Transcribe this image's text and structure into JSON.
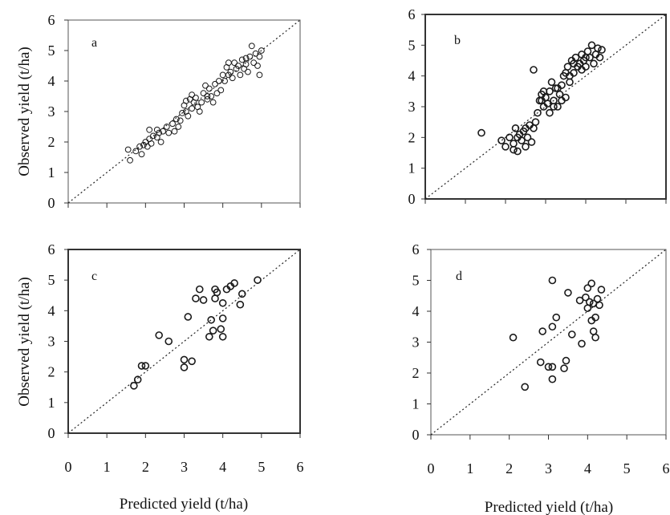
{
  "figure": {
    "ylabel": "Observed yield (t/ha)",
    "xlabel": "Predicted yield (t/ha)",
    "x_ticks": [
      "0",
      "1",
      "2",
      "3",
      "4",
      "5",
      "6"
    ],
    "y_ticks": [
      "0",
      "1",
      "2",
      "3",
      "4",
      "5",
      "6"
    ]
  },
  "chart_data": [
    {
      "type": "scatter",
      "panel": "a",
      "xlim": [
        0,
        6
      ],
      "ylim": [
        0,
        6
      ],
      "reference_line": "1:1 dotted",
      "grid": false,
      "points": [
        [
          1.55,
          1.75
        ],
        [
          1.6,
          1.4
        ],
        [
          1.75,
          1.7
        ],
        [
          1.85,
          1.85
        ],
        [
          1.9,
          1.6
        ],
        [
          1.95,
          1.9
        ],
        [
          2.0,
          2.0
        ],
        [
          2.05,
          1.85
        ],
        [
          2.1,
          2.1
        ],
        [
          2.1,
          2.4
        ],
        [
          2.15,
          1.95
        ],
        [
          2.2,
          2.2
        ],
        [
          2.3,
          2.15
        ],
        [
          2.35,
          2.3
        ],
        [
          2.4,
          2.0
        ],
        [
          2.45,
          2.35
        ],
        [
          2.55,
          2.5
        ],
        [
          2.6,
          2.3
        ],
        [
          2.7,
          2.6
        ],
        [
          2.75,
          2.35
        ],
        [
          2.85,
          2.5
        ],
        [
          2.9,
          2.7
        ],
        [
          2.95,
          2.95
        ],
        [
          3.0,
          3.2
        ],
        [
          3.05,
          3.0
        ],
        [
          3.05,
          3.35
        ],
        [
          3.1,
          2.85
        ],
        [
          3.15,
          3.4
        ],
        [
          3.2,
          3.1
        ],
        [
          3.25,
          3.3
        ],
        [
          3.3,
          3.45
        ],
        [
          3.35,
          3.15
        ],
        [
          3.4,
          3.0
        ],
        [
          3.45,
          3.3
        ],
        [
          3.5,
          3.6
        ],
        [
          3.55,
          3.85
        ],
        [
          3.6,
          3.4
        ],
        [
          3.65,
          3.75
        ],
        [
          3.7,
          3.5
        ],
        [
          3.75,
          3.3
        ],
        [
          3.8,
          3.9
        ],
        [
          3.85,
          3.6
        ],
        [
          3.9,
          4.0
        ],
        [
          3.95,
          3.7
        ],
        [
          4.0,
          4.2
        ],
        [
          4.05,
          4.0
        ],
        [
          4.1,
          4.45
        ],
        [
          4.15,
          4.2
        ],
        [
          4.2,
          4.3
        ],
        [
          4.25,
          4.1
        ],
        [
          4.3,
          4.6
        ],
        [
          4.35,
          4.4
        ],
        [
          4.4,
          4.5
        ],
        [
          4.45,
          4.2
        ],
        [
          4.5,
          4.7
        ],
        [
          4.55,
          4.4
        ],
        [
          4.6,
          4.55
        ],
        [
          4.65,
          4.3
        ],
        [
          4.7,
          4.8
        ],
        [
          4.75,
          5.15
        ],
        [
          4.8,
          4.6
        ],
        [
          4.85,
          4.9
        ],
        [
          4.9,
          4.5
        ],
        [
          4.95,
          4.2
        ],
        [
          4.95,
          4.8
        ],
        [
          5.0,
          5.0
        ],
        [
          3.6,
          3.5
        ],
        [
          3.2,
          3.55
        ],
        [
          2.8,
          2.75
        ],
        [
          2.3,
          2.4
        ],
        [
          4.15,
          4.6
        ],
        [
          4.6,
          4.75
        ]
      ]
    },
    {
      "type": "scatter",
      "panel": "b",
      "xlim": [
        0,
        6
      ],
      "ylim": [
        0,
        6
      ],
      "reference_line": "1:1 dotted",
      "grid": false,
      "points": [
        [
          1.4,
          2.15
        ],
        [
          1.9,
          1.9
        ],
        [
          2.0,
          1.7
        ],
        [
          2.1,
          2.0
        ],
        [
          2.2,
          1.8
        ],
        [
          2.25,
          2.3
        ],
        [
          2.3,
          1.55
        ],
        [
          2.35,
          2.1
        ],
        [
          2.4,
          1.9
        ],
        [
          2.45,
          2.2
        ],
        [
          2.5,
          1.7
        ],
        [
          2.55,
          2.0
        ],
        [
          2.6,
          2.4
        ],
        [
          2.65,
          1.85
        ],
        [
          2.7,
          2.3
        ],
        [
          2.75,
          2.5
        ],
        [
          2.7,
          4.2
        ],
        [
          2.8,
          2.8
        ],
        [
          2.85,
          3.2
        ],
        [
          2.9,
          3.4
        ],
        [
          2.95,
          3.0
        ],
        [
          3.0,
          3.3
        ],
        [
          3.05,
          3.1
        ],
        [
          3.1,
          3.5
        ],
        [
          3.1,
          2.8
        ],
        [
          3.15,
          3.8
        ],
        [
          3.2,
          3.2
        ],
        [
          3.25,
          3.6
        ],
        [
          3.3,
          3.0
        ],
        [
          3.35,
          3.4
        ],
        [
          3.4,
          3.7
        ],
        [
          3.45,
          4.0
        ],
        [
          3.5,
          3.3
        ],
        [
          3.55,
          4.3
        ],
        [
          3.6,
          3.8
        ],
        [
          3.65,
          4.5
        ],
        [
          3.7,
          4.1
        ],
        [
          3.75,
          4.6
        ],
        [
          3.8,
          4.3
        ],
        [
          3.85,
          4.4
        ],
        [
          3.9,
          4.7
        ],
        [
          3.95,
          4.5
        ],
        [
          4.0,
          4.3
        ],
        [
          4.05,
          4.8
        ],
        [
          4.1,
          4.6
        ],
        [
          4.15,
          5.0
        ],
        [
          4.2,
          4.4
        ],
        [
          4.25,
          4.7
        ],
        [
          4.3,
          4.9
        ],
        [
          4.35,
          4.6
        ],
        [
          4.4,
          4.85
        ],
        [
          3.5,
          4.1
        ],
        [
          3.6,
          4.0
        ],
        [
          3.3,
          3.6
        ],
        [
          2.95,
          3.5
        ],
        [
          2.9,
          3.2
        ],
        [
          3.7,
          4.4
        ],
        [
          3.9,
          4.2
        ],
        [
          4.0,
          4.6
        ],
        [
          2.5,
          2.3
        ],
        [
          2.3,
          2.0
        ],
        [
          2.2,
          1.6
        ],
        [
          3.2,
          3.0
        ],
        [
          3.4,
          3.2
        ]
      ]
    },
    {
      "type": "scatter",
      "panel": "c",
      "xlim": [
        0,
        6
      ],
      "ylim": [
        0,
        6
      ],
      "reference_line": "1:1 dotted",
      "grid": false,
      "points": [
        [
          1.7,
          1.55
        ],
        [
          1.8,
          1.75
        ],
        [
          1.9,
          2.2
        ],
        [
          2.0,
          2.2
        ],
        [
          2.35,
          3.2
        ],
        [
          2.6,
          3.0
        ],
        [
          3.0,
          2.15
        ],
        [
          3.0,
          2.4
        ],
        [
          3.1,
          3.8
        ],
        [
          3.2,
          2.35
        ],
        [
          3.3,
          4.4
        ],
        [
          3.4,
          4.7
        ],
        [
          3.5,
          4.35
        ],
        [
          3.65,
          3.15
        ],
        [
          3.7,
          3.7
        ],
        [
          3.75,
          3.35
        ],
        [
          3.8,
          4.4
        ],
        [
          3.8,
          4.7
        ],
        [
          3.85,
          4.6
        ],
        [
          3.95,
          3.4
        ],
        [
          4.0,
          3.15
        ],
        [
          4.0,
          3.75
        ],
        [
          4.0,
          4.25
        ],
        [
          4.1,
          4.7
        ],
        [
          4.2,
          4.8
        ],
        [
          4.3,
          4.9
        ],
        [
          4.45,
          4.2
        ],
        [
          4.5,
          4.55
        ],
        [
          4.9,
          5.0
        ]
      ]
    },
    {
      "type": "scatter",
      "panel": "d",
      "xlim": [
        0,
        6
      ],
      "ylim": [
        0,
        6
      ],
      "reference_line": "1:1 dotted",
      "grid": false,
      "points": [
        [
          2.1,
          3.15
        ],
        [
          2.4,
          1.55
        ],
        [
          2.8,
          2.35
        ],
        [
          2.85,
          3.35
        ],
        [
          3.0,
          2.2
        ],
        [
          3.1,
          2.2
        ],
        [
          3.1,
          3.5
        ],
        [
          3.1,
          5.0
        ],
        [
          3.1,
          1.8
        ],
        [
          3.2,
          3.8
        ],
        [
          3.4,
          2.15
        ],
        [
          3.45,
          2.4
        ],
        [
          3.5,
          4.6
        ],
        [
          3.6,
          3.25
        ],
        [
          3.8,
          4.35
        ],
        [
          3.85,
          2.95
        ],
        [
          3.95,
          4.45
        ],
        [
          4.0,
          4.75
        ],
        [
          4.05,
          4.3
        ],
        [
          4.1,
          3.7
        ],
        [
          4.1,
          4.9
        ],
        [
          4.15,
          3.35
        ],
        [
          4.15,
          4.25
        ],
        [
          4.2,
          3.15
        ],
        [
          4.2,
          3.8
        ],
        [
          4.25,
          4.4
        ],
        [
          4.3,
          4.2
        ],
        [
          4.35,
          4.7
        ],
        [
          4.0,
          4.1
        ]
      ]
    }
  ]
}
